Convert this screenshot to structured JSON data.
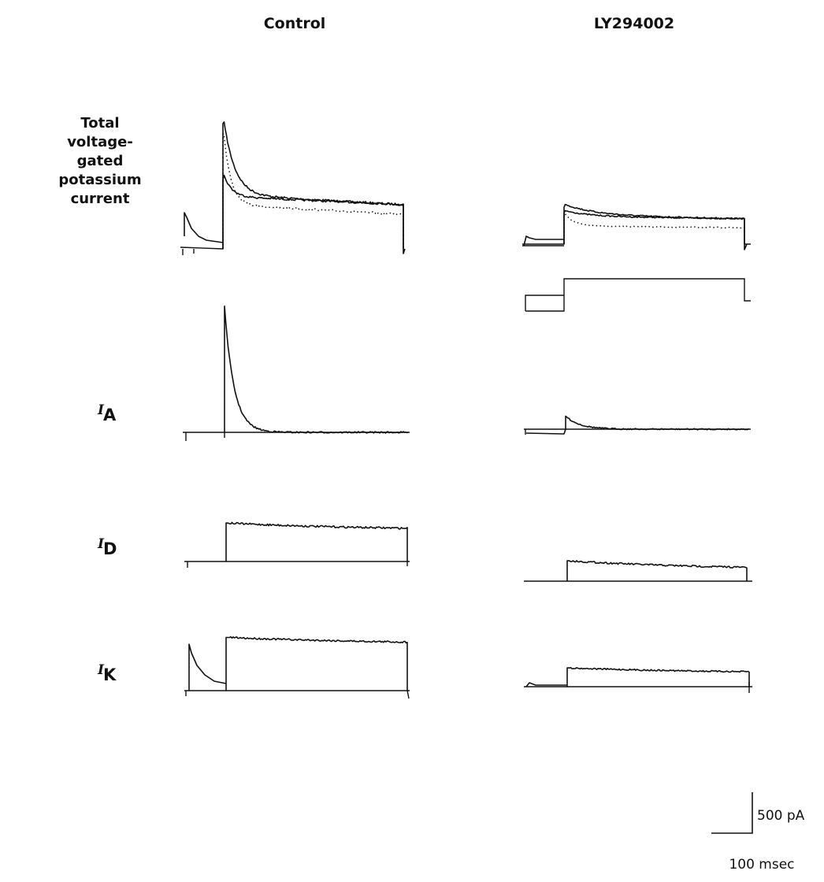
{
  "chart_data": {
    "type": "line",
    "columns": [
      "Control",
      "LY294002"
    ],
    "rows": [
      {
        "label_lines": [
          "Total",
          "voltage-",
          "gated",
          "potassium",
          "current"
        ]
      },
      {
        "label_italic": "I",
        "label_sub": "A"
      },
      {
        "label_italic": "I",
        "label_sub": "D"
      },
      {
        "label_italic": "I",
        "label_sub": "K"
      }
    ],
    "scale_bar": {
      "current": "500 pA",
      "time": "100 msec"
    },
    "approx_values_pA": {
      "Control": {
        "total_solid_peak": 1530,
        "total_solid_end": 540,
        "total_second_peak": 840,
        "total_second_end": 540,
        "total_dotted_end": 420,
        "I_A_peak": 1540,
        "I_D_plateau": 470,
        "I_K_plateau": 650
      },
      "LY294002": {
        "total_peak": 450,
        "total_end": 310,
        "total_dotted_end": 200,
        "I_A_peak": 160,
        "I_D_plateau": 250,
        "I_K_plateau": 230
      }
    }
  }
}
